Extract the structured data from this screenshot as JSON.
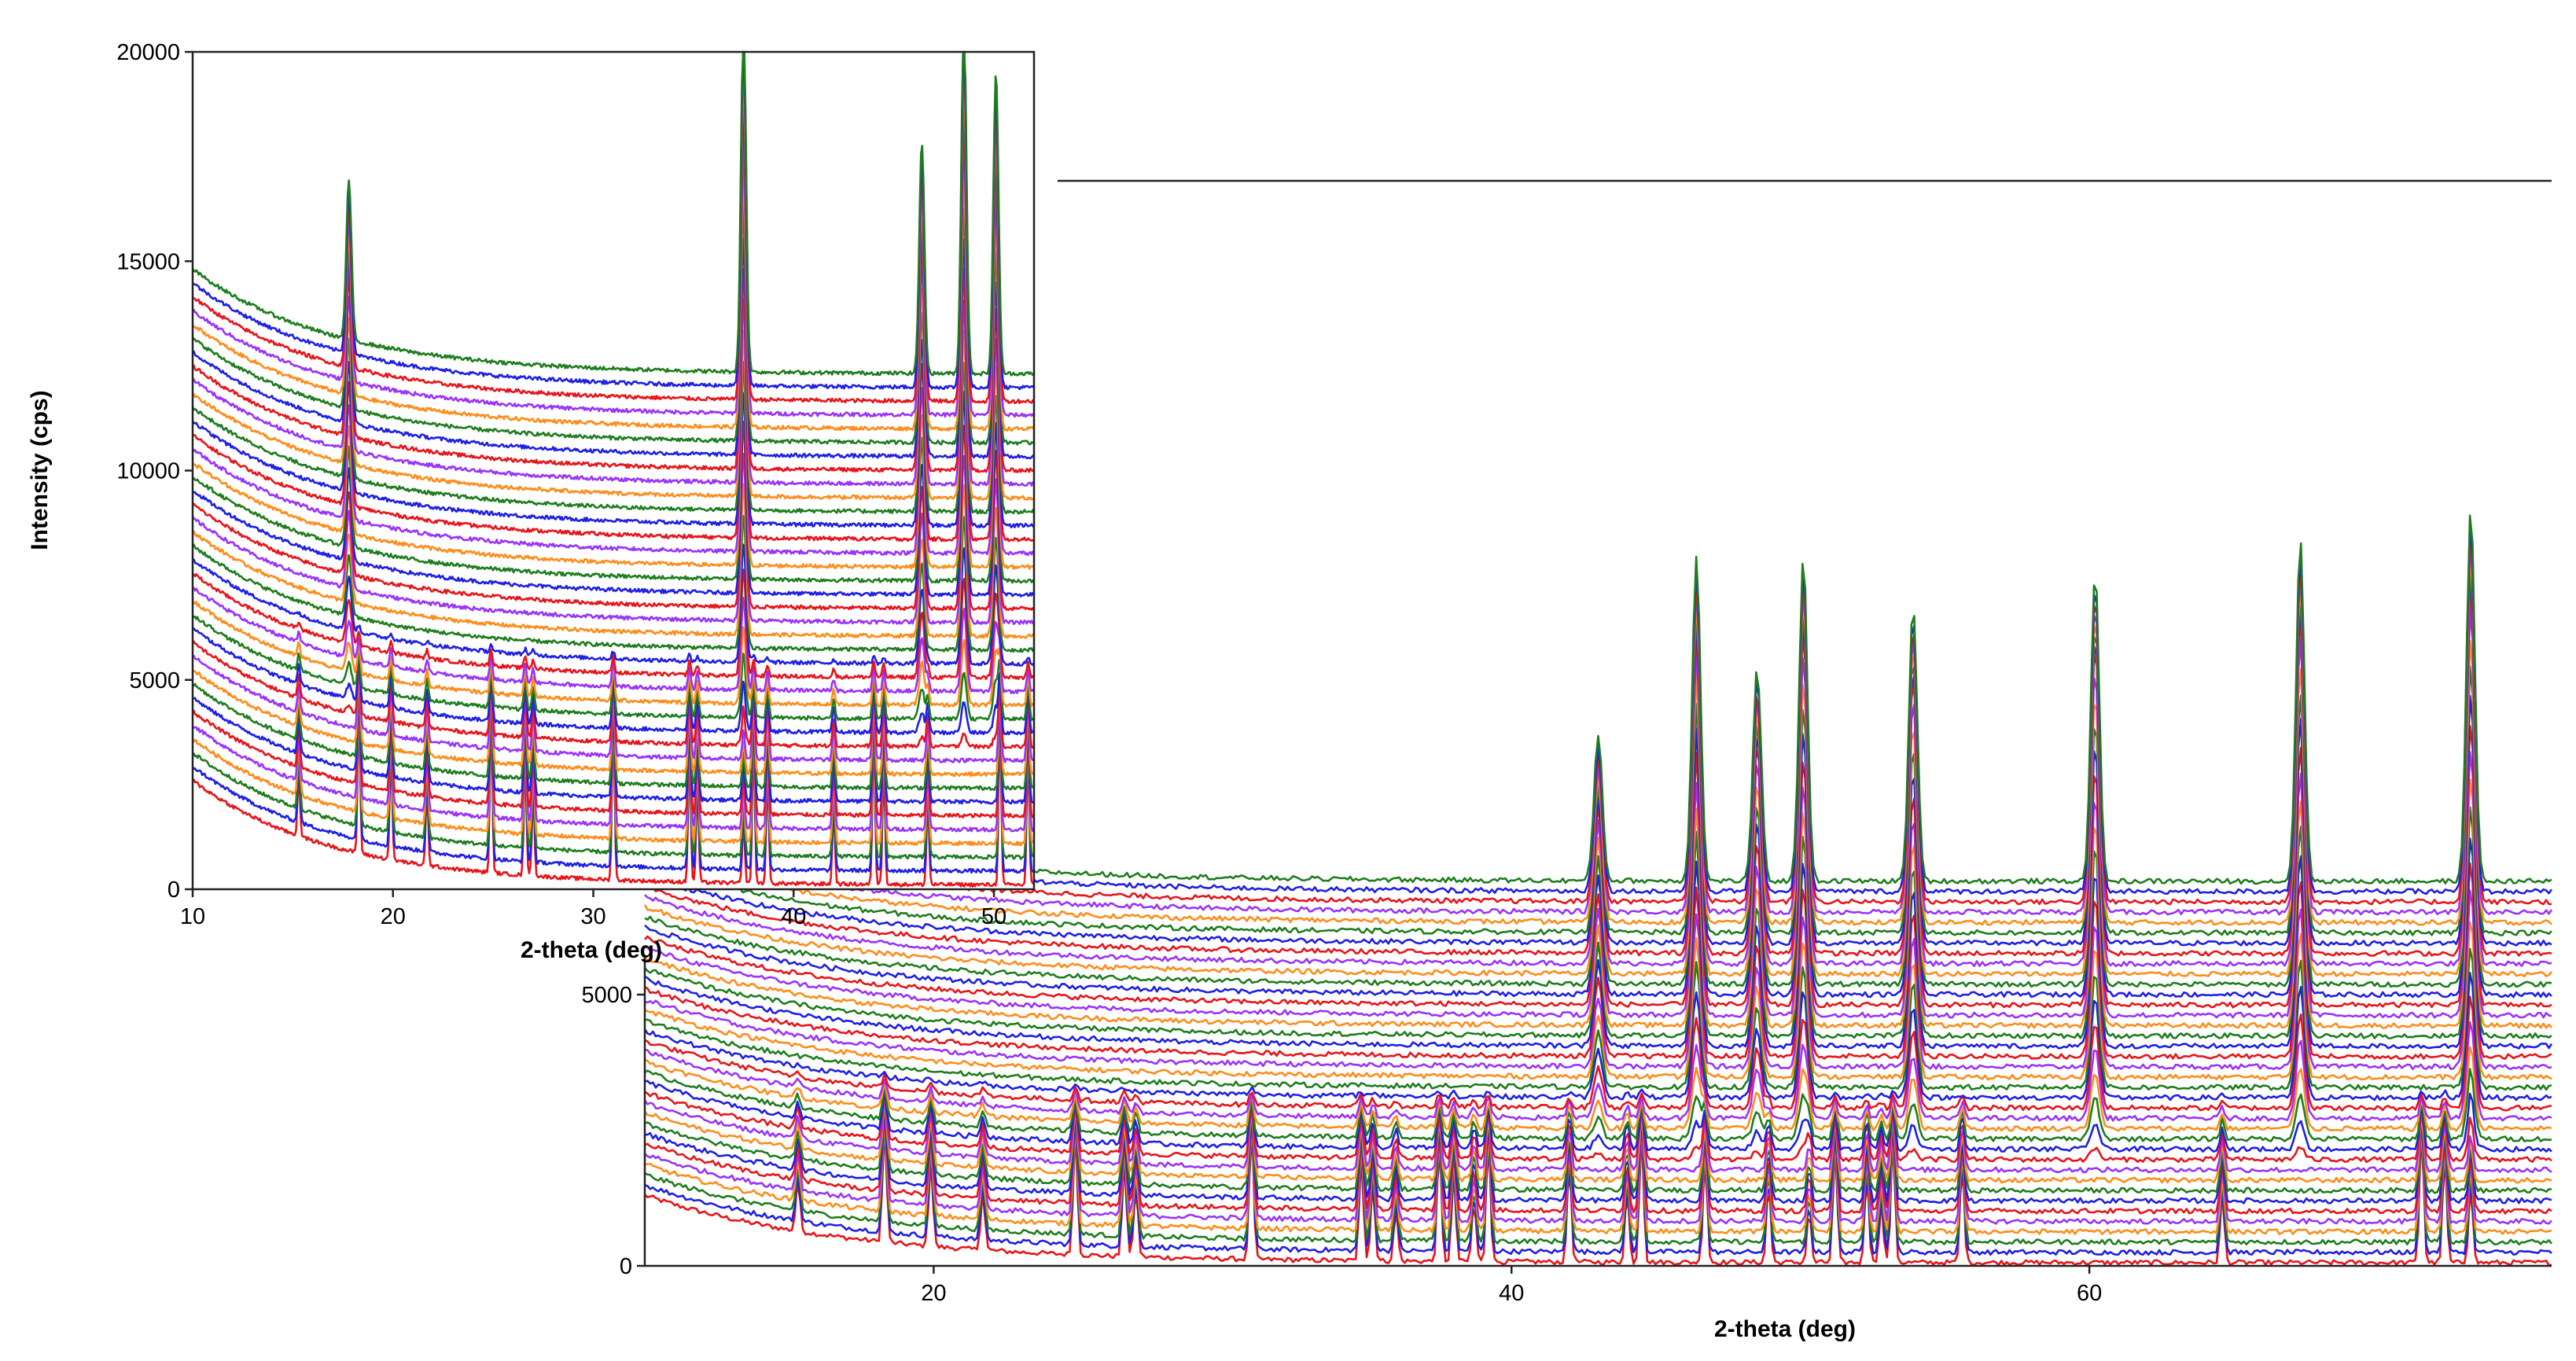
{
  "chart_data": [
    {
      "type": "line",
      "panel": "inset",
      "xlabel": "2-theta (deg)",
      "ylabel": "Intensity (cps)",
      "xlim": [
        10,
        52
      ],
      "ylim": [
        0,
        20000
      ],
      "xticks": [
        10,
        20,
        30,
        40,
        50
      ],
      "yticks": [
        0,
        5000,
        10000,
        15000,
        20000
      ],
      "box": true,
      "grid": false,
      "legend": "none",
      "n_series": 38,
      "stack_offset": 330,
      "series_colors": [
        "#e8141a",
        "#1f1fe6",
        "#1e7d1e",
        "#ff8c1a",
        "#9933ff"
      ],
      "background": {
        "low_angle_value": 2600,
        "decay_to": 100
      },
      "peaks_initial_phase": [
        15.3,
        18.3,
        19.9,
        21.7,
        24.9,
        26.6,
        27.0,
        31.0,
        34.8,
        35.2,
        37.5,
        38.0,
        38.7,
        42.0,
        44.0,
        44.5,
        46.7,
        50.3,
        51.7
      ],
      "peaks_final_phase": [
        17.8,
        37.5,
        46.4,
        48.5,
        50.1
      ]
    },
    {
      "type": "line",
      "panel": "main",
      "xlabel": "2-theta (deg)",
      "ylabel": "",
      "xlim": [
        10,
        76
      ],
      "ylim": [
        0,
        5000
      ],
      "xticks": [
        20,
        40,
        60
      ],
      "yticks": [
        0,
        5000
      ],
      "box": false,
      "grid": false,
      "legend": "none",
      "n_series": 38,
      "stack_offset": 190,
      "series_colors": [
        "#e8141a",
        "#1f1fe6",
        "#1e7d1e",
        "#ff8c1a",
        "#9933ff"
      ],
      "background": {
        "low_angle_value": 1300,
        "decay_to": 60
      },
      "peaks_initial_phase": [
        15.3,
        18.3,
        19.9,
        21.7,
        24.9,
        26.6,
        27.0,
        31.0,
        34.8,
        35.2,
        36.0,
        37.5,
        38.0,
        38.7,
        39.2,
        42.0,
        44.0,
        44.5,
        46.7,
        48.9,
        50.3,
        51.2,
        52.3,
        52.8,
        53.2,
        55.6,
        64.6,
        71.5,
        72.3,
        73.2
      ],
      "peaks_final_phase": [
        43.0,
        46.4,
        48.5,
        50.1,
        53.9,
        60.2,
        67.3,
        73.2
      ]
    }
  ]
}
